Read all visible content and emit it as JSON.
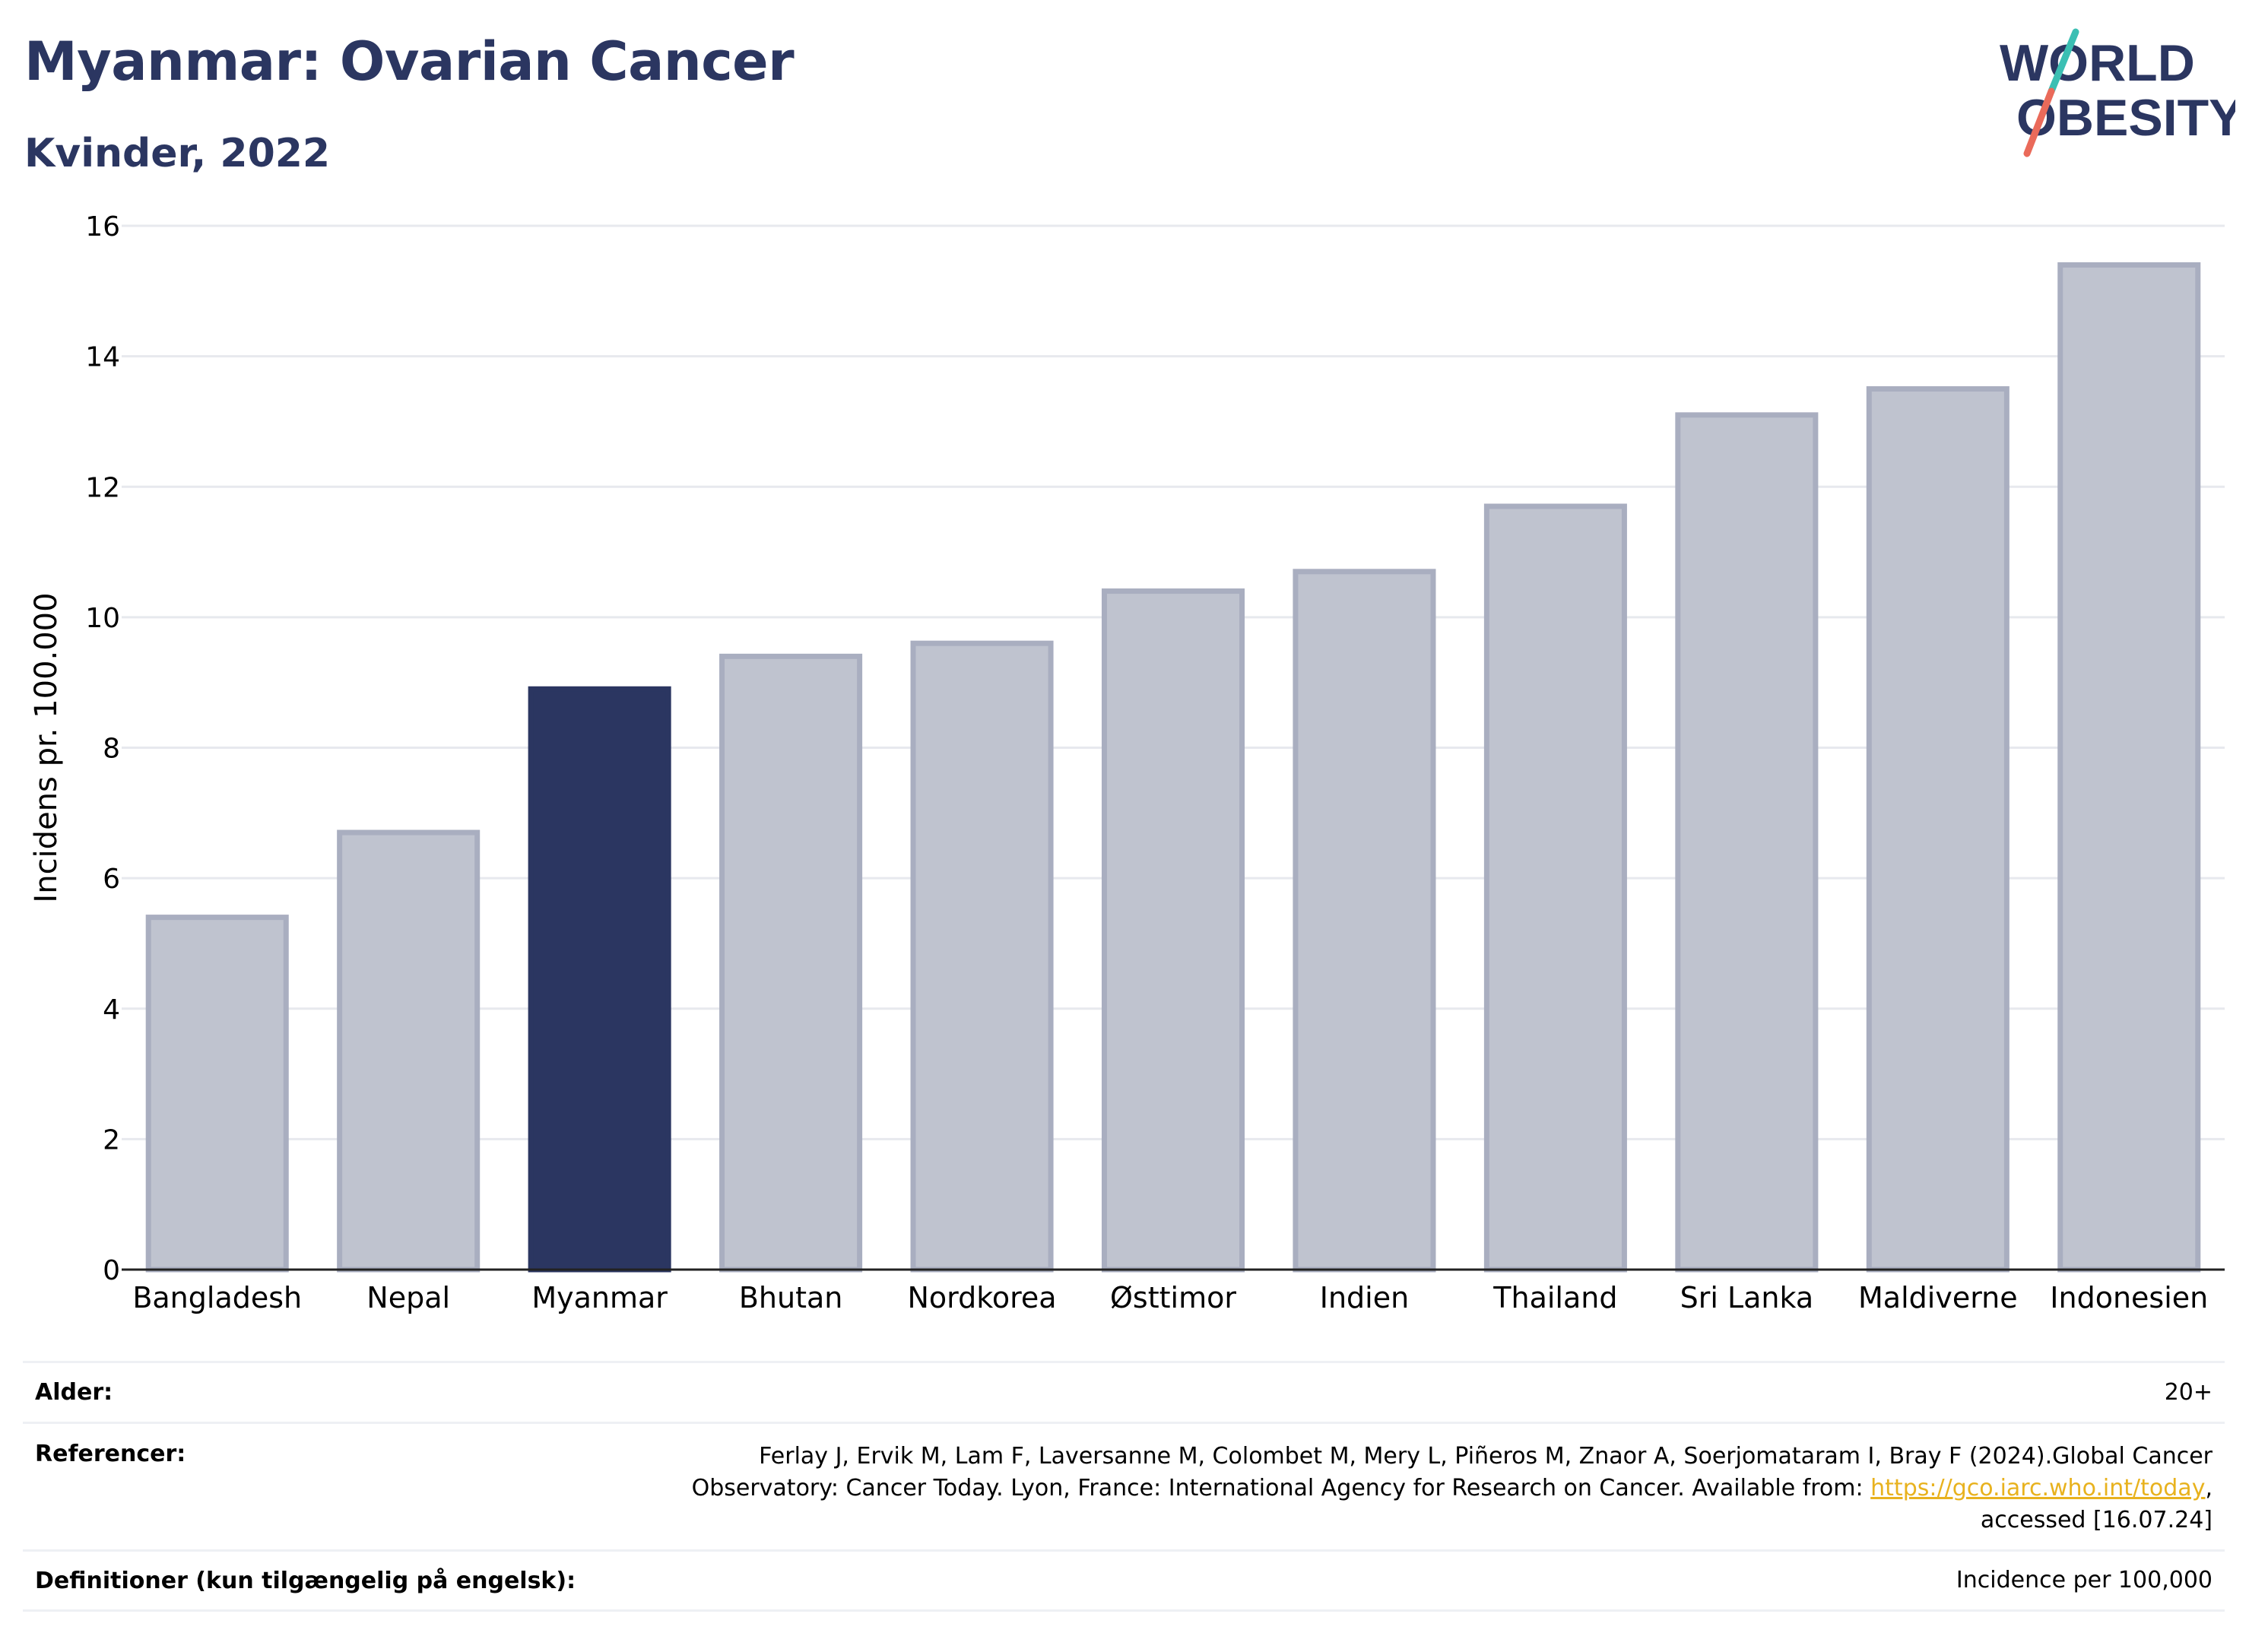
{
  "header": {
    "title": "Myanmar: Ovarian Cancer",
    "subtitle": "Kvinder, 2022"
  },
  "logo": {
    "line1": "WORLD",
    "line2": "OBESITY",
    "icon": "world-obesity-logo"
  },
  "colors": {
    "highlight": "#2b3661",
    "bar_fill": "#bfc3cf",
    "bar_stroke": "#a9aec0",
    "text": "#2b3661",
    "link": "#e8b21e"
  },
  "chart_data": {
    "type": "bar",
    "categories": [
      "Bangladesh",
      "Nepal",
      "Myanmar",
      "Bhutan",
      "Nordkorea",
      "Østtimor",
      "Indien",
      "Thailand",
      "Sri Lanka",
      "Maldiverne",
      "Indonesien"
    ],
    "values": [
      5.4,
      6.7,
      8.9,
      9.4,
      9.6,
      10.4,
      10.7,
      11.7,
      13.1,
      13.5,
      15.4
    ],
    "highlight": "Myanmar",
    "ylabel": "Incidens pr. 100.000",
    "xlabel": "",
    "ylim": [
      0,
      16
    ],
    "yticks": [
      0,
      2,
      4,
      6,
      8,
      10,
      12,
      14,
      16
    ],
    "grid": true
  },
  "meta": {
    "age_label": "Alder:",
    "age_value": "20+",
    "ref_label": "Referencer:",
    "ref_line1": "Ferlay J, Ervik M, Lam F, Laversanne M, Colombet M, Mery L, Piñeros M, Znaor A, Soerjomataram I, Bray F (2024).Global Cancer",
    "ref_line2_pre": "Observatory: Cancer Today. Lyon, France: International Agency for Research on Cancer. Available from: ",
    "ref_link": "https://gco.iarc.who.int/today",
    "ref_line2_post": ",",
    "ref_line3": "accessed [16.07.24]",
    "def_label": "Definitioner (kun tilgængelig på engelsk):",
    "def_value": "Incidence per 100,000"
  }
}
